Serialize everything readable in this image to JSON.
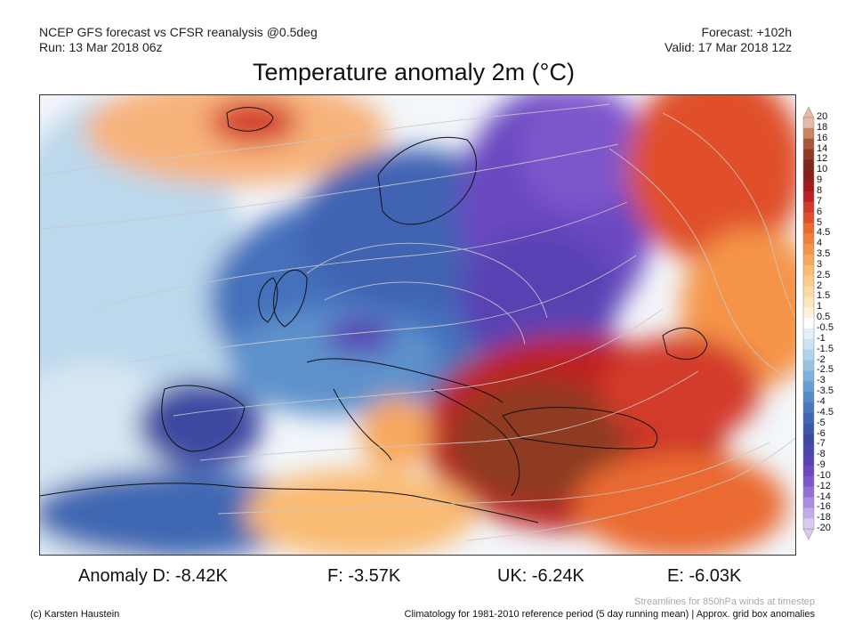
{
  "header": {
    "left_line1": "NCEP GFS forecast vs CFSR reanalysis @0.5deg",
    "left_line2": "Run: 13 Mar 2018 06z",
    "right_line1": "Forecast: +102h",
    "right_line2": "Valid: 17 Mar 2018 12z"
  },
  "title": "Temperature anomaly 2m (°C)",
  "colorbar": {
    "ticks": [
      "20",
      "18",
      "16",
      "14",
      "12",
      "10",
      "9",
      "8",
      "7",
      "6",
      "5",
      "4.5",
      "4",
      "3.5",
      "3",
      "2.5",
      "2",
      "1.5",
      "1",
      "0.5",
      "-0.5",
      "-1",
      "-1.5",
      "-2",
      "-2.5",
      "-3",
      "-3.5",
      "-4",
      "-4.5",
      "-5",
      "-6",
      "-7",
      "-8",
      "-9",
      "-10",
      "-12",
      "-14",
      "-16",
      "-18",
      "-20"
    ],
    "colors": [
      "#e7b9a3",
      "#c98465",
      "#a8573d",
      "#8e3a24",
      "#7d2a1c",
      "#8a1f1b",
      "#a3191c",
      "#be2024",
      "#d33a2a",
      "#e04f2c",
      "#ea6a30",
      "#f07f3a",
      "#f5944a",
      "#f8a85d",
      "#fabb73",
      "#fbcb8a",
      "#fcd9a2",
      "#fde6bb",
      "#fef1d6",
      "#ffffff",
      "#e3f0f8",
      "#cbe3f2",
      "#b1d4eb",
      "#97c4e3",
      "#7eb2da",
      "#689ed0",
      "#578bc6",
      "#4978bc",
      "#3f67b2",
      "#3a57a8",
      "#3d4aa1",
      "#4a46a8",
      "#5843b3",
      "#6a48c1",
      "#7e57cc",
      "#9470d6",
      "#ab8ddf",
      "#c3abe8",
      "#d9c9f1"
    ]
  },
  "anomalies": {
    "d": "Anomaly D: -8.42K",
    "f": "F: -3.57K",
    "uk": "UK: -6.24K",
    "e": "E: -6.03K"
  },
  "footer": {
    "credit": "(c) Karsten Haustein",
    "streamlines": "Streamlines for 850hPa winds at timestep",
    "climatology": "Climatology for 1981-2010 reference period (5 day running mean) | Approx. grid box anomalies"
  }
}
